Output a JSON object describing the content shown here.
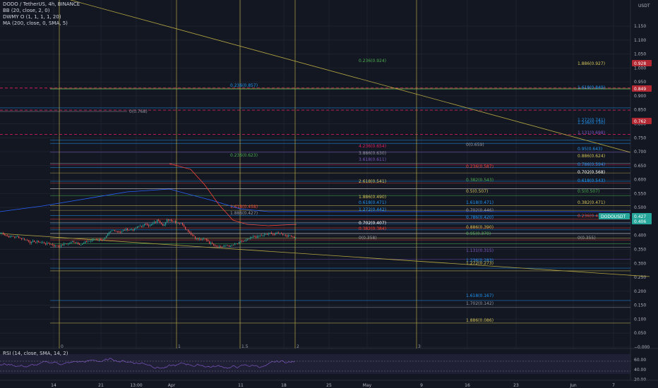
{
  "legend": {
    "title": "DODO / TetherUS, 4h, BINANCE",
    "bb": "BB (20, close, 2, 0)",
    "dwmy": "DWMY O (1, 1, 1, 1, 20)",
    "ma": "MA (200, close, 0, SMA, 5)",
    "rsi": "RSI (14, close, SMA, 14, 2)"
  },
  "axis": {
    "currency": "USDT",
    "price_ticks": [
      "1.150",
      "1.100",
      "1.050",
      "1.000",
      "0.950",
      "0.900",
      "0.850",
      "0.800",
      "0.750",
      "0.700",
      "0.650",
      "0.600",
      "0.550",
      "0.500",
      "0.450",
      "0.400",
      "0.350",
      "0.300",
      "0.250",
      "0.200",
      "0.150",
      "0.100",
      "0.050",
      "−0.000"
    ],
    "rsi_ticks": [
      "60.00",
      "40.00",
      "20.00"
    ],
    "time_ticks": [
      "14",
      "21",
      "13:00",
      "Apr",
      "11",
      "18",
      "25",
      "May",
      "9",
      "16",
      "23",
      "Jun",
      "7"
    ],
    "price_badges": [
      {
        "text": "0.928",
        "color": "#b22833"
      },
      {
        "text": "0.849",
        "color": "#b22833"
      },
      {
        "text": "0.762",
        "color": "#b22833"
      },
      {
        "text": "0.427",
        "color": "#26a69a"
      },
      {
        "text": "0.406",
        "color": "#26a69a"
      }
    ],
    "instrument_badge": "DODOUSDT"
  },
  "fib_labels": [
    {
      "text": "0.236(0.924)",
      "color": "#4caf50"
    },
    {
      "text": "1.886(0.927)",
      "color": "#d4c45a"
    },
    {
      "text": "0.236(0.857)",
      "color": "#2196f3"
    },
    {
      "text": "1.618(0.849)",
      "color": "#2196f3"
    },
    {
      "text": "0(0.768)",
      "color": "#9598a1"
    },
    {
      "text": "1.272(0.741)",
      "color": "#2196f3"
    },
    {
      "text": "1.236(0.730)",
      "color": "#2196f3"
    },
    {
      "text": "1.131(0.698)",
      "color": "#7e57c2"
    },
    {
      "text": "0(0.659)",
      "color": "#9598a1"
    },
    {
      "text": "4.236(0.654)",
      "color": "#e91e63"
    },
    {
      "text": "0.95(0.643)",
      "color": "#2196f3"
    },
    {
      "text": "3.886(0.630)",
      "color": "#9598a1"
    },
    {
      "text": "0.236(0.623)",
      "color": "#4caf50"
    },
    {
      "text": "0.886(0.624)",
      "color": "#d4c45a"
    },
    {
      "text": "3.618(0.611)",
      "color": "#7e57c2"
    },
    {
      "text": "0.786(0.594)",
      "color": "#2196f3"
    },
    {
      "text": "0.236(0.587)",
      "color": "#f44336"
    },
    {
      "text": "0.702(0.568)",
      "color": "#ffffff"
    },
    {
      "text": "2.618(0.541)",
      "color": "#d4c45a"
    },
    {
      "text": "0.382(0.543)",
      "color": "#4caf50"
    },
    {
      "text": "0.618(0.543)",
      "color": "#2196f3"
    },
    {
      "text": "0.5(0.507)",
      "color": "#d4c45a"
    },
    {
      "text": "0.5(0.507)",
      "color": "#4caf50"
    },
    {
      "text": "1.886(0.490)",
      "color": "#d4c45a"
    },
    {
      "text": "0.618(0.471)",
      "color": "#2196f3"
    },
    {
      "text": "1.618(0.471)",
      "color": "#2196f3"
    },
    {
      "text": "0.382(0.471)",
      "color": "#d4c45a"
    },
    {
      "text": "1.618(0.458)",
      "color": "#f44336"
    },
    {
      "text": "0.702(0.446)",
      "color": "#9598a1"
    },
    {
      "text": "1.272(0.442)",
      "color": "#2196f3"
    },
    {
      "text": "1.886(0.427)",
      "color": "#9598a1"
    },
    {
      "text": "0.236(0.427)",
      "color": "#f44336"
    },
    {
      "text": "0.786(0.420)",
      "color": "#2196f3"
    },
    {
      "text": "0.702(0.407)",
      "color": "#ffffff"
    },
    {
      "text": "0.886(0.390)",
      "color": "#d4c45a"
    },
    {
      "text": "0.382(0.384)",
      "color": "#f44336"
    },
    {
      "text": "0.95(0.370)",
      "color": "#4caf50"
    },
    {
      "text": "0(0.358)",
      "color": "#9598a1"
    },
    {
      "text": "0(0.355)",
      "color": "#9598a1"
    },
    {
      "text": "1.131(0.315)",
      "color": "#7e57c2"
    },
    {
      "text": "1.236(0.283)",
      "color": "#2196f3"
    },
    {
      "text": "1.272(0.273)",
      "color": "#d4c45a"
    },
    {
      "text": "1.618(0.167)",
      "color": "#2196f3"
    },
    {
      "text": "1.702(0.142)",
      "color": "#9598a1"
    },
    {
      "text": "1.886(0.086)",
      "color": "#d4c45a"
    }
  ],
  "vertical_marker_labels": [
    "0",
    "1",
    "1.5",
    "2",
    "3"
  ],
  "colors": {
    "background": "#131722",
    "up": "#26a69a",
    "down": "#ef5350"
  }
}
